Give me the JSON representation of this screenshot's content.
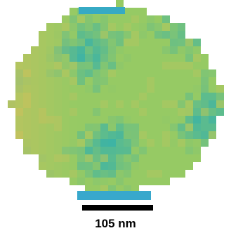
{
  "scale_bar": {
    "label": "105 nm"
  }
}
